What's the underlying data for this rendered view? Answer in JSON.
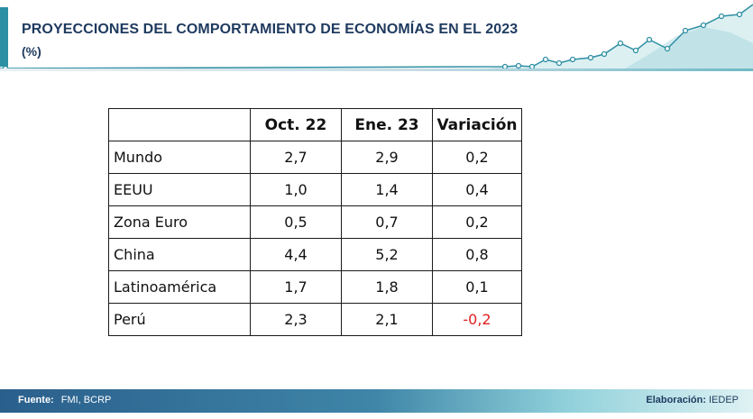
{
  "header": {
    "title": "PROYECCIONES DEL COMPORTAMIENTO DE ECONOMÍAS EN EL 2023",
    "subtitle": "(%)"
  },
  "table": {
    "headers": [
      "",
      "Oct. 22",
      "Ene. 23",
      "Variación"
    ],
    "rows": [
      {
        "country": "Mundo",
        "oct22": "2,7",
        "ene23": "2,9",
        "variacion": "0,2"
      },
      {
        "country": "EEUU",
        "oct22": "1,0",
        "ene23": "1,4",
        "variacion": "0,4"
      },
      {
        "country": "Zona Euro",
        "oct22": "0,5",
        "ene23": "0,7",
        "variacion": "0,2"
      },
      {
        "country": "China",
        "oct22": "4,4",
        "ene23": "5,2",
        "variacion": "0,8"
      },
      {
        "country": "Latinoamérica",
        "oct22": "1,7",
        "ene23": "1,8",
        "variacion": "0,1"
      },
      {
        "country": "Perú",
        "oct22": "2,3",
        "ene23": "2,1",
        "variacion": "-0,2"
      }
    ]
  },
  "footer": {
    "source_label": "Fuente:",
    "source_value": "FMI, BCRP",
    "credit_label": "Elaboración:",
    "credit_value": "IEDEP"
  },
  "colors": {
    "title": "#1e3a5f",
    "accent": "#2d8fa3",
    "negative": "#e02020"
  }
}
